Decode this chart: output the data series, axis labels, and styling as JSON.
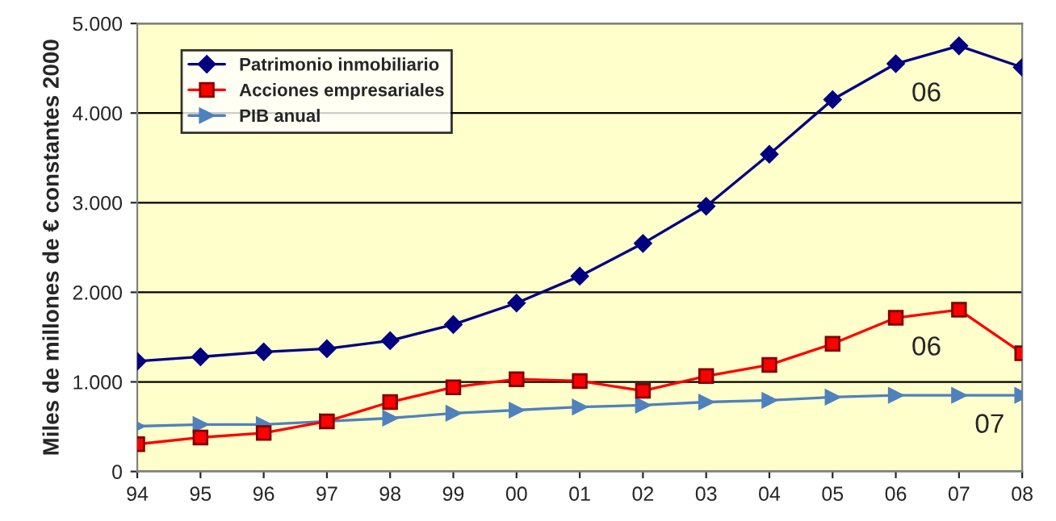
{
  "chart_data": {
    "type": "line",
    "ylabel": "Miles de millones de € constantes 2000",
    "categories": [
      "94",
      "95",
      "96",
      "97",
      "98",
      "99",
      "00",
      "01",
      "02",
      "03",
      "04",
      "05",
      "06",
      "07",
      "08"
    ],
    "series": [
      {
        "name": "Patrimonio inmobiliario",
        "color": "#000080",
        "marker": "diamond",
        "values": [
          1230,
          1280,
          1335,
          1370,
          1460,
          1640,
          1880,
          2180,
          2545,
          2960,
          3540,
          4150,
          4550,
          4750,
          4510
        ]
      },
      {
        "name": "Acciones empresariales",
        "color": "#ff0000",
        "marker": "square",
        "values": [
          305,
          380,
          430,
          560,
          775,
          940,
          1030,
          1010,
          900,
          1065,
          1190,
          1425,
          1715,
          1805,
          1320
        ]
      },
      {
        "name": "PIB anual",
        "color": "#4f81bd",
        "marker": "triangle",
        "values": [
          505,
          525,
          525,
          560,
          595,
          650,
          685,
          720,
          740,
          775,
          795,
          830,
          850,
          850,
          850
        ]
      }
    ],
    "ylim": [
      0,
      5000
    ],
    "yticks": [
      0,
      {
        "value": 1000,
        "label": "1.000"
      },
      {
        "value": 2000,
        "label": "2.000"
      },
      {
        "value": 3000,
        "label": "3.000"
      },
      {
        "value": 4000,
        "label": "4.000"
      },
      {
        "value": 5000,
        "label": "5.000"
      }
    ],
    "grid": "y",
    "legend": "top left",
    "line_style": "solid",
    "annotations": [
      {
        "text": "06",
        "x": "06",
        "y": 4550
      },
      {
        "text": "06",
        "x": "06",
        "y": 1715
      },
      {
        "text": "07",
        "x": "07",
        "y": 850
      }
    ]
  }
}
